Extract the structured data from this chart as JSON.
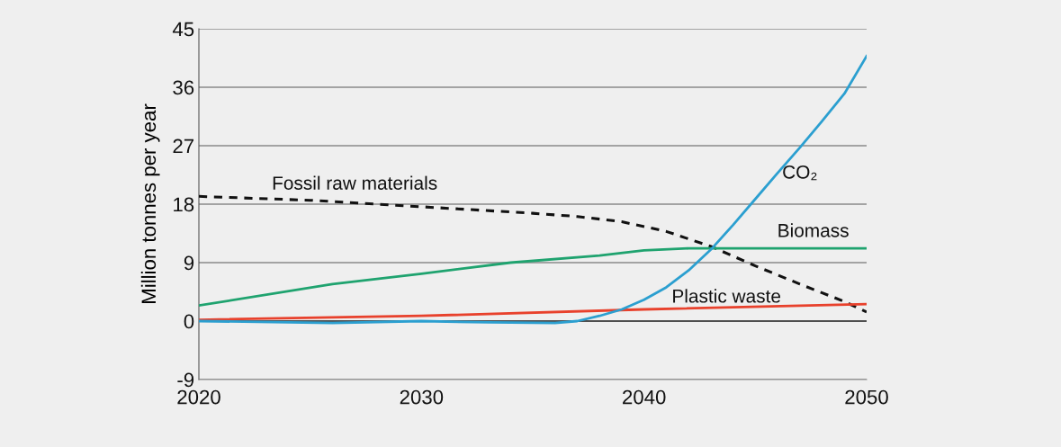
{
  "chart_data": {
    "type": "line",
    "ylabel": "Million tonnes per year",
    "xlim": [
      2020,
      2050
    ],
    "xticks": [
      2020,
      2030,
      2040,
      2050
    ],
    "ylim": [
      -9,
      45
    ],
    "yticks": [
      -9,
      0,
      9,
      18,
      27,
      36,
      45
    ],
    "grid": "y",
    "legend": false,
    "ref_lines": [
      {
        "axis": "y",
        "value": 0,
        "color": "#333333"
      }
    ],
    "series": [
      {
        "name": "Fossil raw materials",
        "color": "#111111",
        "line_style": "dashed",
        "x": [
          2020,
          2025,
          2030,
          2035,
          2037,
          2039,
          2041,
          2043,
          2045,
          2047,
          2049,
          2050
        ],
        "values": [
          19.2,
          18.6,
          17.6,
          16.6,
          16.1,
          15.3,
          13.8,
          11.5,
          8.5,
          5.7,
          3,
          1.4
        ]
      },
      {
        "name": "Biomass",
        "color": "#1fa36f",
        "x": [
          2020,
          2026,
          2030,
          2034,
          2038,
          2040,
          2042,
          2050
        ],
        "values": [
          2.4,
          5.7,
          7.3,
          9.0,
          10.1,
          10.9,
          11.2,
          11.2
        ]
      },
      {
        "name": "Plastic waste",
        "color": "#e8412c",
        "x": [
          2020,
          2030,
          2040,
          2050
        ],
        "values": [
          0.2,
          0.8,
          1.8,
          2.6
        ]
      },
      {
        "name": "CO₂",
        "color": "#2b9fd0",
        "x": [
          2020,
          2026,
          2030,
          2033,
          2036,
          2037,
          2038,
          2039,
          2040,
          2041,
          2042,
          2043,
          2044,
          2045,
          2046,
          2047,
          2048,
          2049,
          2050
        ],
        "values": [
          0,
          -0.3,
          0,
          -0.2,
          -0.3,
          0,
          0.8,
          1.8,
          3.3,
          5.2,
          7.8,
          11,
          14.8,
          18.8,
          22.8,
          26.7,
          30.8,
          35,
          40.8
        ]
      }
    ]
  }
}
